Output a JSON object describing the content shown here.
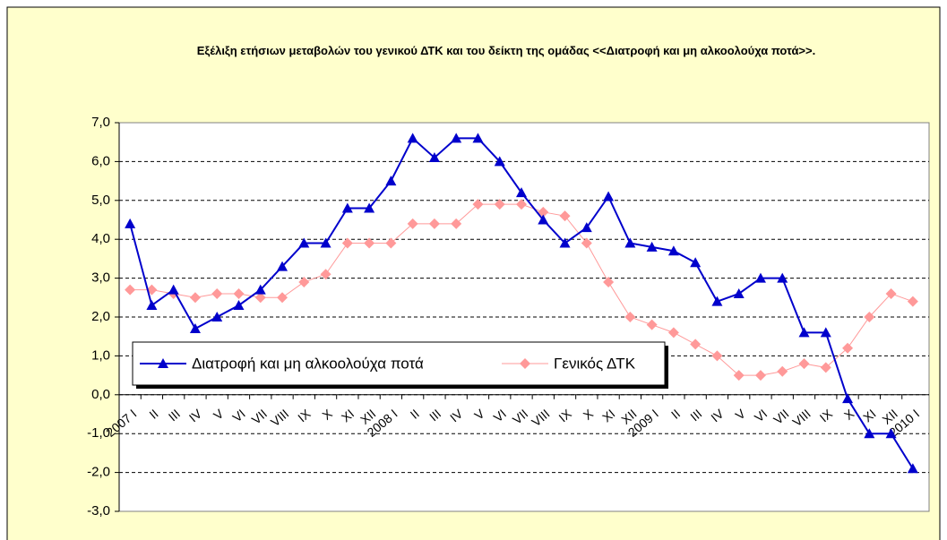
{
  "chart_data": {
    "type": "line",
    "title": "Εξέλιξη ετήσιων μεταβολών του γενικού ΔΤΚ και  του δείκτη της ομάδας <<Διατροφή και μη αλκοολούχα ποτά>>.",
    "categories": [
      "2007 I",
      "II",
      "III",
      "IV",
      "V",
      "VI",
      "VII",
      "VIII",
      "IX",
      "X",
      "XI",
      "XII",
      "2008 I",
      "II",
      "III",
      "IV",
      "V",
      "VI",
      "VII",
      "VIII",
      "IX",
      "X",
      "XI",
      "XII",
      "2009 I",
      "II",
      "III",
      "IV",
      "V",
      "VI",
      "VII",
      "VIII",
      "IX",
      "X",
      "XI",
      "XII",
      "2010 I"
    ],
    "series": [
      {
        "name": "Διατροφή και μη αλκοολούχα ποτά",
        "color": "#0000cc",
        "values": [
          4.4,
          2.3,
          2.7,
          1.7,
          2.0,
          2.3,
          2.7,
          3.3,
          3.9,
          3.9,
          4.8,
          4.8,
          5.5,
          6.6,
          6.1,
          6.6,
          6.6,
          6.0,
          5.2,
          4.5,
          3.9,
          4.3,
          5.1,
          3.9,
          3.8,
          3.7,
          3.4,
          2.4,
          2.6,
          3.0,
          3.0,
          1.6,
          1.6,
          -0.1,
          -1.0,
          -1.0,
          -1.9
        ]
      },
      {
        "name": "Γενικός ΔΤΚ",
        "color": "#ff9999",
        "values": [
          2.7,
          2.7,
          2.6,
          2.5,
          2.6,
          2.6,
          2.5,
          2.5,
          2.9,
          3.1,
          3.9,
          3.9,
          3.9,
          4.4,
          4.4,
          4.4,
          4.9,
          4.9,
          4.9,
          4.7,
          4.6,
          3.9,
          2.9,
          2.0,
          1.8,
          1.6,
          1.3,
          1.0,
          0.5,
          0.5,
          0.6,
          0.8,
          0.7,
          1.2,
          2.0,
          2.6,
          2.4
        ]
      }
    ],
    "ylim": [
      -3,
      7
    ],
    "yticks": [
      {
        "value": -3,
        "label": "-3,0"
      },
      {
        "value": -2,
        "label": "-2,0"
      },
      {
        "value": -1,
        "label": "-1,0"
      },
      {
        "value": 0,
        "label": "0,0"
      },
      {
        "value": 1,
        "label": "1,0"
      },
      {
        "value": 2,
        "label": "2,0"
      },
      {
        "value": 3,
        "label": "3,0"
      },
      {
        "value": 4,
        "label": "4,0"
      },
      {
        "value": 5,
        "label": "5,0"
      },
      {
        "value": 6,
        "label": "6,0"
      },
      {
        "value": 7,
        "label": "7,0"
      }
    ],
    "grid": true
  }
}
